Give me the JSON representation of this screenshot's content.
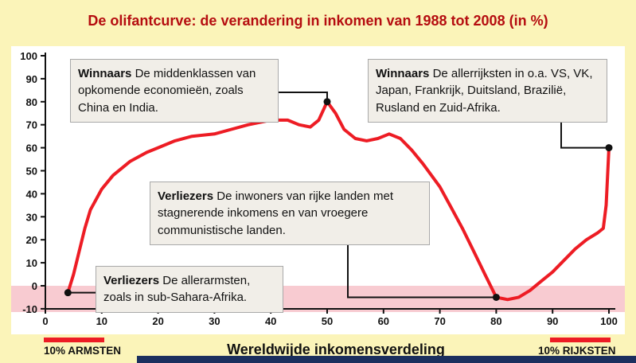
{
  "title": "De olifantcurve: de verandering in inkomen van 1988 tot 2008 (in %)",
  "colors": {
    "background": "#FBF4B9",
    "title": "#B50D10",
    "curve": "#ED1C24",
    "negative_band": "#F8CBD1",
    "annotation_bg": "#F1EEE8",
    "annotation_border": "#A9A9A9",
    "bottom_bar": "#1B2F5E",
    "axis": "#111111"
  },
  "annotations": [
    {
      "bold": "Winnaars",
      "text": "De middenklassen van opkomende economieën, zoals China en India."
    },
    {
      "bold": "Winnaars",
      "text": "De allerrijksten in o.a. VS, VK, Japan, Frankrijk, Duitsland, Brazilië, Rusland en Zuid-Afrika."
    },
    {
      "bold": "Verliezers",
      "text": "De inwoners van rijke landen met stagnerende inkomens  en van vroegere  communistische landen."
    },
    {
      "bold": "Verliezers",
      "text": "De allerarmsten, zoals in sub-Sahara-Afrika."
    }
  ],
  "footer": {
    "left_label": "10% ARMSTEN",
    "right_label": "10% RIJKSTEN"
  },
  "chart_data": {
    "type": "line",
    "title": "De olifantcurve: de verandering in inkomen van 1988 tot 2008 (in %)",
    "xlabel": "Wereldwijde inkomensverdeling",
    "ylabel": "",
    "xlim": [
      0,
      100
    ],
    "ylim": [
      -10,
      100
    ],
    "x_ticks": [
      0,
      10,
      20,
      30,
      40,
      50,
      60,
      70,
      80,
      90,
      100
    ],
    "y_ticks": [
      100,
      90,
      80,
      70,
      60,
      50,
      40,
      30,
      20,
      10,
      0,
      -10
    ],
    "grid": false,
    "x": [
      4,
      5,
      6,
      7,
      8,
      10,
      12,
      15,
      18,
      20,
      23,
      26,
      30,
      33,
      36,
      40,
      43,
      45,
      47,
      48.5,
      50,
      51.5,
      53,
      55,
      57,
      59,
      61,
      63,
      65,
      67,
      70,
      72,
      74,
      76,
      78,
      80,
      82,
      84,
      86,
      88,
      90,
      92,
      94,
      96,
      98,
      99,
      99.5,
      100
    ],
    "y": [
      -3,
      5,
      15,
      25,
      33,
      42,
      48,
      54,
      58,
      60,
      63,
      65,
      66,
      68,
      70,
      72,
      72,
      70,
      69,
      72,
      80,
      75,
      68,
      64,
      63,
      64,
      66,
      64,
      59,
      53,
      43,
      34,
      25,
      15,
      5,
      -5,
      -6,
      -5,
      -2,
      2,
      6,
      11,
      16,
      20,
      23,
      25,
      35,
      60
    ],
    "markers": [
      {
        "x": 4,
        "y": -3
      },
      {
        "x": 50,
        "y": 80
      },
      {
        "x": 80,
        "y": -5
      },
      {
        "x": 100,
        "y": 60
      }
    ]
  }
}
